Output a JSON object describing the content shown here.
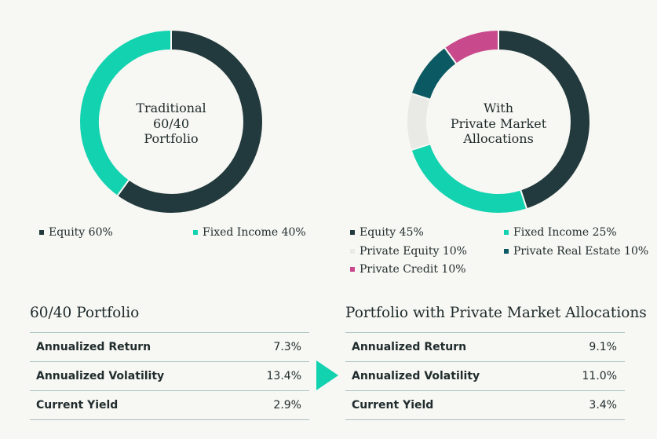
{
  "colors": {
    "equity": "#223a3d",
    "fixed_income": "#12d2b0",
    "private_equity": "#e9e9e6",
    "private_real_estate": "#0b5962",
    "private_credit": "#c84a8c",
    "arrow": "#12d2b0"
  },
  "chart_data": [
    {
      "type": "pie",
      "center_label": [
        "Traditional",
        "60/40",
        "Portfolio"
      ],
      "slices": [
        {
          "label": "Equity 60%",
          "value": 60,
          "color": "#223a3d"
        },
        {
          "label": "Fixed Income 40%",
          "value": 40,
          "color": "#12d2b0"
        }
      ]
    },
    {
      "type": "pie",
      "center_label": [
        "With",
        "Private Market",
        "Allocations"
      ],
      "slices": [
        {
          "label": "Equity 45%",
          "value": 45,
          "color": "#223a3d"
        },
        {
          "label": "Fixed Income 25%",
          "value": 25,
          "color": "#12d2b0"
        },
        {
          "label": "Private Equity 10%",
          "value": 10,
          "color": "#e9e9e6"
        },
        {
          "label": "Private Real Estate 10%",
          "value": 10,
          "color": "#0b5962"
        },
        {
          "label": "Private Credit 10%",
          "value": 10,
          "color": "#c84a8c"
        }
      ]
    }
  ],
  "tables": [
    {
      "title": "60/40 Portfolio",
      "rows": [
        {
          "label": "Annualized Return",
          "value": "7.3%"
        },
        {
          "label": "Annualized Volatility",
          "value": "13.4%"
        },
        {
          "label": "Current Yield",
          "value": "2.9%"
        }
      ]
    },
    {
      "title": "Portfolio with Private Market Allocations",
      "rows": [
        {
          "label": "Annualized Return",
          "value": "9.1%"
        },
        {
          "label": "Annualized Volatility",
          "value": "11.0%"
        },
        {
          "label": "Current Yield",
          "value": "3.4%"
        }
      ]
    }
  ]
}
